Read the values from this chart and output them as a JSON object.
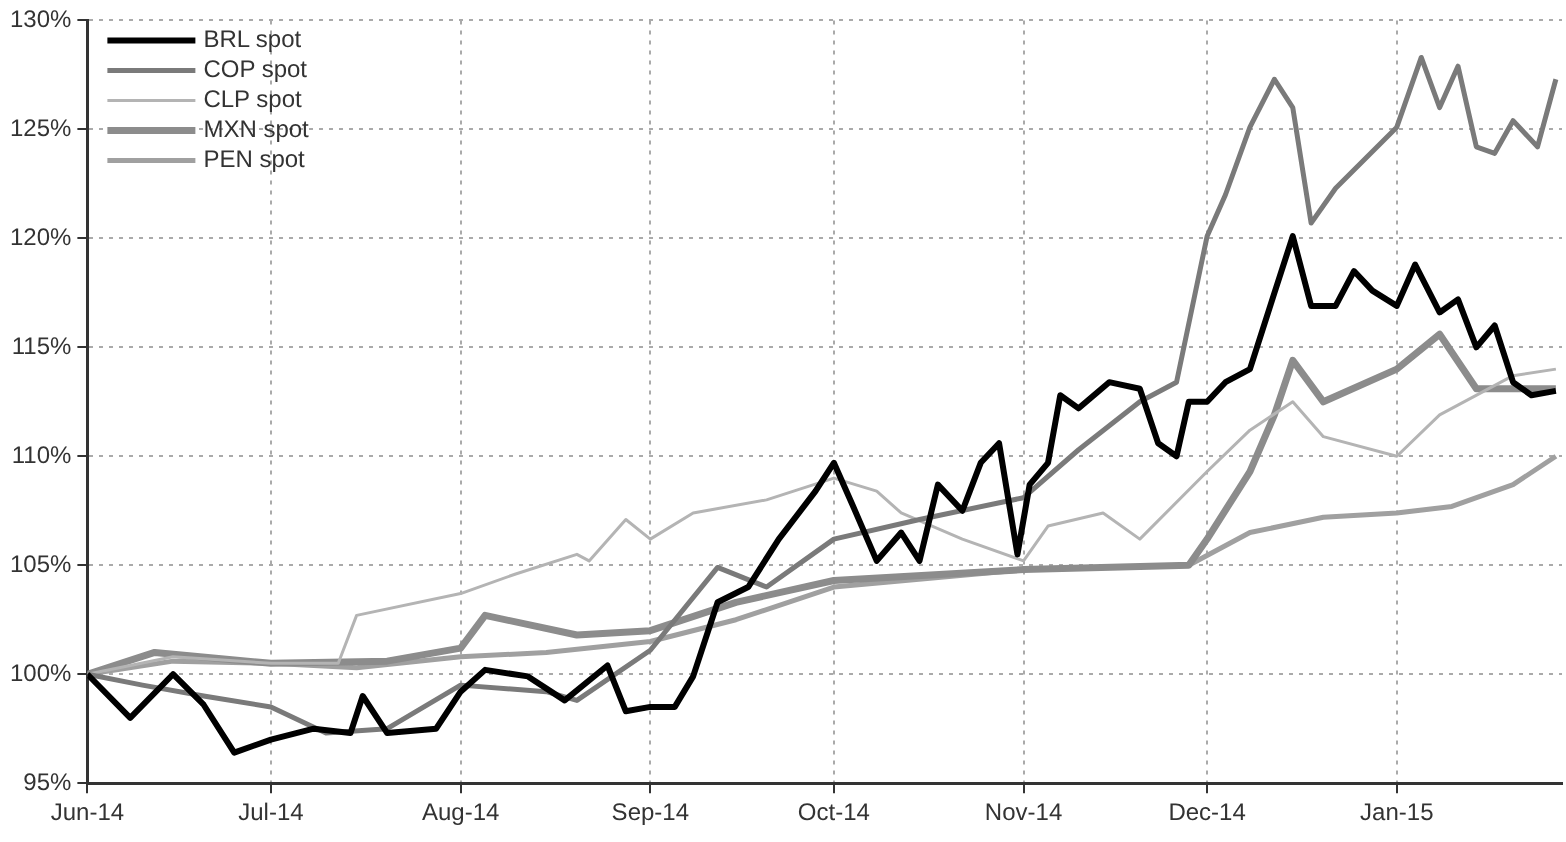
{
  "chart_data": {
    "type": "line",
    "legend": "top left",
    "grid": true,
    "marker": "none",
    "line_style": "solid",
    "xlim": [
      "2014-06-01",
      "2015-01-28"
    ],
    "xticks": [
      {
        "value": "2014-06-01",
        "label": "Jun-14"
      },
      {
        "value": "2014-07-01",
        "label": "Jul-14"
      },
      {
        "value": "2014-08-01",
        "label": "Aug-14"
      },
      {
        "value": "2014-09-01",
        "label": "Sep-14"
      },
      {
        "value": "2014-10-01",
        "label": "Oct-14"
      },
      {
        "value": "2014-11-01",
        "label": "Nov-14"
      },
      {
        "value": "2014-12-01",
        "label": "Dec-14"
      },
      {
        "value": "2015-01-01",
        "label": "Jan-15"
      }
    ],
    "ylim": [
      95,
      130
    ],
    "yticks": [
      {
        "value": 95,
        "label": "95%"
      },
      {
        "value": 100,
        "label": "100%"
      },
      {
        "value": 105,
        "label": "105%"
      },
      {
        "value": 110,
        "label": "110%"
      },
      {
        "value": 115,
        "label": "115%"
      },
      {
        "value": 120,
        "label": "120%"
      },
      {
        "value": 125,
        "label": "125%"
      },
      {
        "value": 130,
        "label": "130%"
      }
    ],
    "series": [
      {
        "name": "BRL spot",
        "color": "#000000",
        "x": [
          "2014-06-01",
          "2014-06-08",
          "2014-06-15",
          "2014-06-20",
          "2014-06-25",
          "2014-07-01",
          "2014-07-08",
          "2014-07-14",
          "2014-07-16",
          "2014-07-20",
          "2014-07-28",
          "2014-08-01",
          "2014-08-05",
          "2014-08-12",
          "2014-08-18",
          "2014-08-25",
          "2014-08-28",
          "2014-09-01",
          "2014-09-05",
          "2014-09-08",
          "2014-09-12",
          "2014-09-17",
          "2014-09-22",
          "2014-09-28",
          "2014-10-01",
          "2014-10-04",
          "2014-10-08",
          "2014-10-12",
          "2014-10-15",
          "2014-10-18",
          "2014-10-22",
          "2014-10-25",
          "2014-10-28",
          "2014-10-31",
          "2014-11-02",
          "2014-11-05",
          "2014-11-07",
          "2014-11-10",
          "2014-11-15",
          "2014-11-20",
          "2014-11-23",
          "2014-11-26",
          "2014-11-28",
          "2014-12-01",
          "2014-12-04",
          "2014-12-08",
          "2014-12-12",
          "2014-12-15",
          "2014-12-18",
          "2014-12-22",
          "2014-12-25",
          "2014-12-28",
          "2015-01-01",
          "2015-01-04",
          "2015-01-08",
          "2015-01-11",
          "2015-01-14",
          "2015-01-17",
          "2015-01-20",
          "2015-01-23",
          "2015-01-27"
        ],
        "values": [
          100,
          98,
          100,
          98.6,
          96.4,
          97,
          97.5,
          97.3,
          99,
          97.3,
          97.5,
          99.2,
          100.2,
          99.9,
          98.8,
          100.4,
          98.3,
          98.5,
          98.5,
          99.9,
          103.3,
          104,
          106.2,
          108.4,
          109.7,
          107.8,
          105.2,
          106.5,
          105.2,
          108.7,
          107.5,
          109.7,
          110.6,
          105.5,
          108.7,
          109.7,
          112.8,
          112.2,
          113.4,
          113.1,
          110.6,
          110,
          112.5,
          112.5,
          113.4,
          114,
          117.5,
          120.1,
          116.9,
          116.9,
          118.5,
          117.6,
          116.9,
          118.8,
          116.6,
          117.2,
          115,
          116,
          113.4,
          112.8,
          113
        ]
      },
      {
        "name": "COP spot",
        "color": "#7a7a7a",
        "x": [
          "2014-06-01",
          "2014-06-10",
          "2014-06-20",
          "2014-07-01",
          "2014-07-10",
          "2014-07-20",
          "2014-08-01",
          "2014-08-15",
          "2014-08-20",
          "2014-09-01",
          "2014-09-12",
          "2014-09-20",
          "2014-10-01",
          "2014-10-15",
          "2014-11-01",
          "2014-11-10",
          "2014-11-20",
          "2014-11-26",
          "2014-12-01",
          "2014-12-04",
          "2014-12-08",
          "2014-12-12",
          "2014-12-15",
          "2014-12-18",
          "2014-12-22",
          "2015-01-01",
          "2015-01-05",
          "2015-01-08",
          "2015-01-11",
          "2015-01-14",
          "2015-01-17",
          "2015-01-20",
          "2015-01-24",
          "2015-01-27"
        ],
        "values": [
          100,
          99.5,
          99,
          98.5,
          97.3,
          97.5,
          99.5,
          99.2,
          98.8,
          101.1,
          104.9,
          104,
          106.2,
          107.1,
          108.1,
          110.3,
          112.5,
          113.4,
          120.1,
          122,
          125.1,
          127.3,
          126,
          120.7,
          122.3,
          125.1,
          128.3,
          126,
          127.9,
          124.2,
          123.9,
          125.4,
          124.2,
          127.3
        ]
      },
      {
        "name": "CLP spot",
        "color": "#b4b4b4",
        "x": [
          "2014-06-01",
          "2014-06-15",
          "2014-07-01",
          "2014-07-12",
          "2014-07-15",
          "2014-08-01",
          "2014-08-10",
          "2014-08-20",
          "2014-08-22",
          "2014-08-28",
          "2014-09-01",
          "2014-09-08",
          "2014-09-20",
          "2014-10-01",
          "2014-10-08",
          "2014-10-12",
          "2014-10-22",
          "2014-11-01",
          "2014-11-05",
          "2014-11-14",
          "2014-11-20",
          "2014-12-01",
          "2014-12-08",
          "2014-12-15",
          "2014-12-20",
          "2015-01-01",
          "2015-01-08",
          "2015-01-20",
          "2015-01-27"
        ],
        "values": [
          100,
          100.8,
          100.5,
          100.5,
          102.7,
          103.7,
          104.6,
          105.5,
          105.2,
          107.1,
          106.2,
          107.4,
          108,
          109,
          108.4,
          107.4,
          106.2,
          105.2,
          106.8,
          107.4,
          106.2,
          109.3,
          111.2,
          112.5,
          110.9,
          110,
          111.9,
          113.7,
          114
        ]
      },
      {
        "name": "MXN spot",
        "color": "#8c8c8c",
        "x": [
          "2014-06-01",
          "2014-06-12",
          "2014-07-01",
          "2014-07-20",
          "2014-08-01",
          "2014-08-05",
          "2014-08-20",
          "2014-09-01",
          "2014-09-15",
          "2014-10-01",
          "2014-11-01",
          "2014-11-28",
          "2014-12-01",
          "2014-12-08",
          "2014-12-12",
          "2014-12-15",
          "2014-12-20",
          "2015-01-01",
          "2015-01-08",
          "2015-01-14",
          "2015-01-20",
          "2015-01-27"
        ],
        "values": [
          100,
          101,
          100.5,
          100.6,
          101.2,
          102.7,
          101.8,
          102,
          103.3,
          104.3,
          104.8,
          105,
          106.2,
          109.3,
          111.9,
          114.4,
          112.5,
          114,
          115.6,
          113.1,
          113.1,
          113.1
        ]
      },
      {
        "name": "PEN spot",
        "color": "#a0a0a0",
        "x": [
          "2014-06-01",
          "2014-06-15",
          "2014-07-01",
          "2014-07-15",
          "2014-08-01",
          "2014-08-15",
          "2014-09-01",
          "2014-09-15",
          "2014-10-01",
          "2014-11-01",
          "2014-11-28",
          "2014-12-08",
          "2014-12-20",
          "2015-01-01",
          "2015-01-10",
          "2015-01-20",
          "2015-01-27"
        ],
        "values": [
          100,
          100.6,
          100.5,
          100.3,
          100.8,
          101,
          101.5,
          102.5,
          104,
          104.8,
          105,
          106.5,
          107.2,
          107.4,
          107.7,
          108.7,
          110
        ]
      }
    ]
  }
}
